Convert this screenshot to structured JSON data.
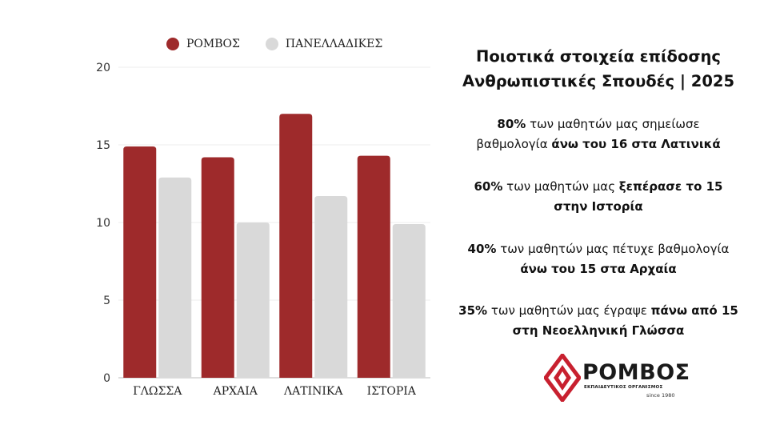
{
  "chart_data": {
    "type": "bar",
    "categories": [
      "ΓΛΩΣΣΑ",
      "ΑΡΧΑΙΑ",
      "ΛΑΤΙΝΙΚΑ",
      "ΙΣΤΟΡΙΑ"
    ],
    "series": [
      {
        "name": "ΡΟΜΒΟΣ",
        "values": [
          14.9,
          14.2,
          17.0,
          14.3
        ],
        "color": "#9e2a2b"
      },
      {
        "name": "ΠΑΝΕΛΛΑΔΙΚΕΣ",
        "values": [
          12.9,
          10.0,
          11.7,
          9.9
        ],
        "color": "#d9d9d9"
      }
    ],
    "ylim": [
      0,
      20
    ],
    "yticks": [
      0,
      5,
      10,
      15,
      20
    ],
    "ytick_labels": [
      "0",
      "5",
      "10",
      "15",
      "20"
    ],
    "grid": true,
    "legend_position": "top"
  },
  "legend": {
    "romvos": "ΡΟΜΒΟΣ",
    "panelladikes": "ΠΑΝΕΛΛΑΔΙΚΕΣ"
  },
  "panel": {
    "title_line1": "Ποιοτικά στοιχεία επίδοσης",
    "title_line2": "Ανθρωπιστικές Σπουδές | 2025",
    "stats": [
      {
        "pct": "80%",
        "text1": " των μαθητών μας σημείωσε",
        "text2": "βαθμολογία ",
        "bold2": "άνω του 16 στα Λατινικά",
        "text3": ""
      },
      {
        "pct": "60%",
        "text1": " των μαθητών μας ",
        "bold1": "ξεπέρασε το 15",
        "bold2": "στην Ιστορία"
      },
      {
        "pct": "40%",
        "text1": " των μαθητών μας πέτυχε βαθμολογία",
        "bold2": "άνω του 15 στα Αρχαία"
      },
      {
        "pct": "35%",
        "text1": " των μαθητών μας έγραψε ",
        "bold1": "πάνω από 15",
        "bold2": "στη Νεοελληνική Γλώσσα"
      }
    ]
  },
  "logo": {
    "name": "ΡΟΜΒΟΣ",
    "subtitle": "ΕΚΠΑΙΔΕΥΤΙΚΟΣ ΟΡΓΑΝΙΣΜΟΣ",
    "since": "since 1980",
    "brand_color": "#c8202f"
  }
}
